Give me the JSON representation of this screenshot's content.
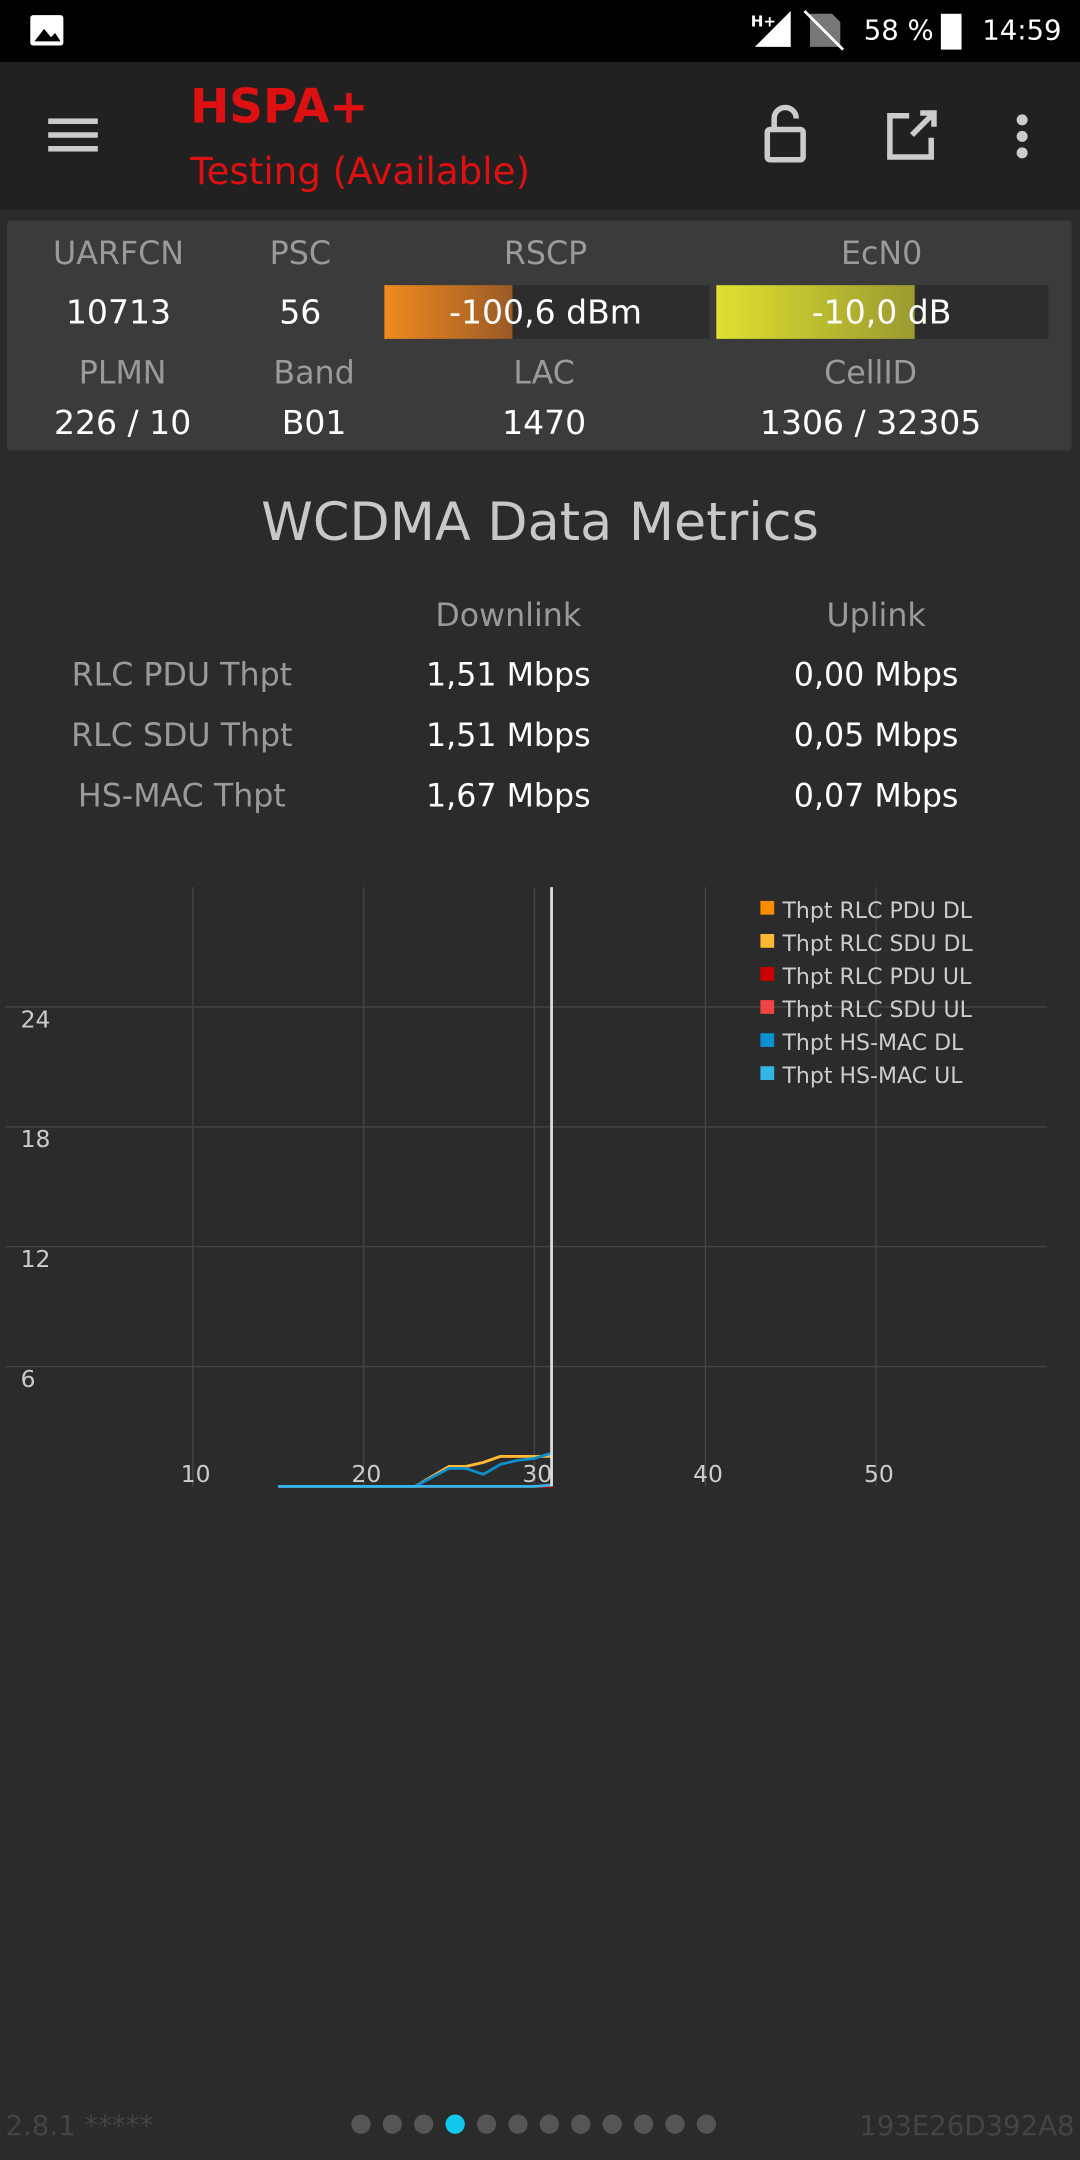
{
  "status_bar": {
    "network": "H+",
    "battery": "58 %",
    "time": "14:59"
  },
  "toolbar": {
    "title": "HSPA+",
    "subtitle": "Testing (Available)"
  },
  "cell_info": {
    "headers_top": [
      "UARFCN",
      "PSC",
      "RSCP",
      "EcN0"
    ],
    "values_top": [
      "10713",
      "56",
      "-100,6 dBm",
      "-10,0 dB"
    ],
    "headers_bottom": [
      "PLMN",
      "Band",
      "LAC",
      "CellID"
    ],
    "values_bottom": [
      "226 / 10",
      "B01",
      "1470",
      "1306 / 32305"
    ]
  },
  "metrics": {
    "title": "WCDMA Data Metrics",
    "columns": [
      "Downlink",
      "Uplink"
    ],
    "rows": [
      {
        "label": "RLC PDU Thpt",
        "downlink": "1,51 Mbps",
        "uplink": "0,00 Mbps"
      },
      {
        "label": "RLC SDU Thpt",
        "downlink": "1,51 Mbps",
        "uplink": "0,05 Mbps"
      },
      {
        "label": "HS-MAC Thpt",
        "downlink": "1,67 Mbps",
        "uplink": "0,07 Mbps"
      }
    ]
  },
  "chart_data": {
    "type": "line",
    "x": [
      15,
      17,
      19,
      21,
      23,
      25,
      26,
      27,
      28,
      29,
      30,
      31
    ],
    "series": [
      {
        "name": "Thpt RLC PDU DL",
        "color": "#ff8c00",
        "values": [
          0,
          0,
          0,
          0,
          0,
          1.0,
          1.0,
          1.2,
          1.5,
          1.5,
          1.5,
          1.51
        ]
      },
      {
        "name": "Thpt RLC SDU DL",
        "color": "#ffb833",
        "values": [
          0,
          0,
          0,
          0,
          0,
          1.0,
          1.0,
          1.2,
          1.5,
          1.5,
          1.5,
          1.51
        ]
      },
      {
        "name": "Thpt RLC PDU UL",
        "color": "#cc0000",
        "values": [
          0,
          0,
          0,
          0,
          0,
          0,
          0,
          0,
          0,
          0,
          0,
          0
        ]
      },
      {
        "name": "Thpt RLC SDU UL",
        "color": "#ee4444",
        "values": [
          0,
          0,
          0,
          0,
          0,
          0,
          0,
          0,
          0,
          0,
          0,
          0.05
        ]
      },
      {
        "name": "Thpt HS-MAC DL",
        "color": "#0a8fd0",
        "values": [
          0,
          0,
          0,
          0,
          0,
          0.9,
          0.9,
          0.6,
          1.1,
          1.3,
          1.4,
          1.67
        ]
      },
      {
        "name": "Thpt HS-MAC UL",
        "color": "#33b5e5",
        "values": [
          0,
          0,
          0,
          0,
          0,
          0,
          0,
          0,
          0,
          0,
          0,
          0.07
        ]
      }
    ],
    "xlim": [
      -1,
      60
    ],
    "ylim": [
      0,
      30
    ],
    "xticks": [
      10,
      20,
      30,
      40,
      50
    ],
    "yticks": [
      6,
      12,
      18,
      24
    ],
    "grid": true,
    "legend": "upper right"
  },
  "footer": {
    "version": "2.8.1 *****",
    "device_id": "193E26D392A8",
    "page_count": 12,
    "current_page": 4
  }
}
